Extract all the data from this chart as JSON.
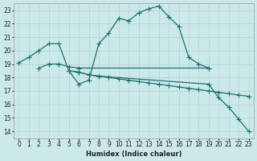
{
  "xlabel": "Humidex (Indice chaleur)",
  "xlim": [
    -0.5,
    23.5
  ],
  "ylim": [
    13.5,
    23.5
  ],
  "yticks": [
    14,
    15,
    16,
    17,
    18,
    19,
    20,
    21,
    22,
    23
  ],
  "xticks": [
    0,
    1,
    2,
    3,
    4,
    5,
    6,
    7,
    8,
    9,
    10,
    11,
    12,
    13,
    14,
    15,
    16,
    17,
    18,
    19,
    20,
    21,
    22,
    23
  ],
  "bg_color": "#cce9e9",
  "grid_color": "#b0d4d4",
  "line_color": "#1e7070",
  "lines": [
    {
      "x": [
        0,
        1,
        2,
        3,
        4,
        5,
        6,
        7,
        8,
        9,
        10,
        11,
        12,
        13,
        14,
        15,
        16,
        17,
        18,
        19
      ],
      "y": [
        19.1,
        19.5,
        20.0,
        20.5,
        20.5,
        18.5,
        17.5,
        17.8,
        20.5,
        21.3,
        22.4,
        22.2,
        22.8,
        23.1,
        23.3,
        22.5,
        21.8,
        19.5,
        19.0,
        18.7
      ]
    },
    {
      "x": [
        2,
        3,
        4,
        5,
        6,
        19
      ],
      "y": [
        18.7,
        19.0,
        19.0,
        18.8,
        18.7,
        18.7
      ]
    },
    {
      "x": [
        5,
        6,
        7,
        8,
        9,
        10,
        11,
        12,
        13,
        14,
        15,
        16,
        17,
        18,
        19,
        20,
        21,
        22,
        23
      ],
      "y": [
        18.5,
        18.4,
        18.2,
        18.1,
        18.0,
        17.9,
        17.8,
        17.7,
        17.6,
        17.5,
        17.4,
        17.3,
        17.2,
        17.1,
        17.0,
        16.9,
        16.8,
        16.7,
        16.6
      ]
    },
    {
      "x": [
        5,
        6,
        7,
        8,
        19,
        20,
        21,
        22,
        23
      ],
      "y": [
        18.5,
        18.4,
        18.2,
        18.1,
        17.5,
        16.5,
        15.8,
        14.9,
        14.0
      ]
    }
  ],
  "marker": "+",
  "markersize": 4,
  "linewidth": 0.9,
  "tick_fontsize": 5.5
}
